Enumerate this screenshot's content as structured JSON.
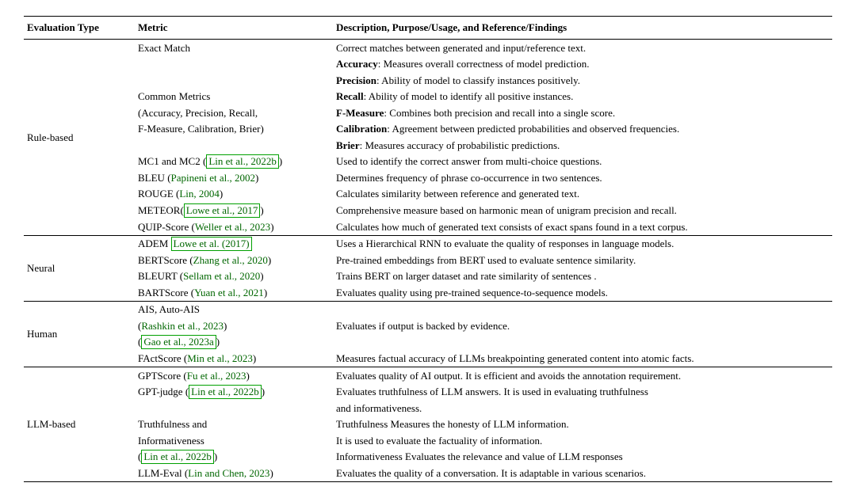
{
  "columns": {
    "c1": "Evaluation Type",
    "c2": "Metric",
    "c3": "Description, Purpose/Usage, and Reference/Findings"
  },
  "groups": [
    {
      "type": "Rule-based",
      "metric": [
        "Exact Match",
        "",
        "",
        "Common Metrics",
        "(Accuracy, Precision, Recall,",
        "F-Measure, Calibration, Brier)",
        "",
        "MC1 and MC2 (",
        "BLEU (",
        "ROUGE (",
        "METEOR(",
        "QUIP-Score ("
      ],
      "metric_cite": [
        "",
        "",
        "",
        "",
        "",
        "",
        "",
        "Lin et al., 2022b",
        "Papineni et al., 2002",
        "Lin, 2004",
        "Lowe et al., 2017",
        "Weller et al., 2023"
      ],
      "metric_citebox": [
        false,
        false,
        false,
        false,
        false,
        false,
        false,
        true,
        false,
        false,
        true,
        false
      ],
      "desc_plain": [
        "Correct matches between generated and input/reference text.",
        "",
        "",
        "",
        "",
        "",
        "",
        "Used to identify the correct answer from multi-choice questions.",
        "Determines frequency of phrase co-occurrence in two sentences.",
        "Calculates similarity between reference and generated text.",
        "Comprehensive measure based on harmonic mean of unigram precision and recall.",
        "Calculates how much of generated text consists of exact spans found in a text corpus."
      ],
      "desc_bold": [
        "",
        "Accuracy",
        "Precision",
        "Recall",
        "F-Measure",
        "Calibration",
        "Brier",
        "",
        "",
        "",
        "",
        ""
      ],
      "desc_rest": [
        "",
        ": Measures overall correctness of model prediction.",
        ": Ability of model to classify instances positively.",
        ": Ability of model to identify all positive instances.",
        ": Combines both precision and recall into a single score.",
        ": Agreement between predicted probabilities and observed frequencies.",
        ": Measures accuracy of probabilistic predictions.",
        "",
        "",
        "",
        "",
        ""
      ]
    },
    {
      "type": "Neural",
      "metric": [
        "ADEM ",
        "BERTScore (",
        "BLEURT (",
        "BARTScore ("
      ],
      "metric_cite": [
        "Lowe et al. (2017)",
        "Zhang et al., 2020",
        "Sellam et al., 2020",
        "Yuan et al., 2021"
      ],
      "metric_citebox": [
        true,
        false,
        false,
        false
      ],
      "desc_plain": [
        "Uses a Hierarchical RNN to evaluate the quality of responses in language models.",
        "Pre-trained embeddings from BERT used to evaluate sentence similarity.",
        "Trains BERT on larger dataset and rate similarity of sentences .",
        "Evaluates quality using pre-trained sequence-to-sequence models."
      ],
      "desc_bold": [
        "",
        "",
        "",
        ""
      ],
      "desc_rest": [
        "",
        "",
        "",
        ""
      ]
    },
    {
      "type": "Human",
      "metric": [
        "AIS, Auto-AIS",
        "(",
        "(",
        "FActScore ("
      ],
      "metric_cite": [
        "",
        "Rashkin et al., 2023",
        "Gao et al., 2023a",
        "Min et al., 2023"
      ],
      "metric_citebox": [
        false,
        false,
        true,
        false
      ],
      "desc_plain": [
        "",
        "Evaluates if output is backed by evidence.",
        "",
        "Measures factual accuracy of LLMs breakpointing generated content into atomic facts."
      ],
      "desc_bold": [
        "",
        "",
        "",
        ""
      ],
      "desc_rest": [
        "",
        "",
        "",
        ""
      ]
    },
    {
      "type": "LLM-based",
      "metric": [
        "GPTScore (",
        "GPT-judge (",
        "",
        "Truthfulness and",
        "Informativeness",
        "(",
        "LLM-Eval ("
      ],
      "metric_cite": [
        "Fu et al., 2023",
        "Lin et al., 2022b",
        "",
        "",
        "",
        "Lin et al., 2022b",
        "Lin and Chen, 2023"
      ],
      "metric_citebox": [
        false,
        true,
        false,
        false,
        false,
        true,
        false
      ],
      "desc_plain": [
        "Evaluates quality of AI output. It is efficient and avoids the annotation requirement.",
        "Evaluates truthfulness of LLM answers. It is used in evaluating truthfulness",
        "and informativeness.",
        "Truthfulness Measures the honesty of LLM information.",
        "It is used to evaluate the factuality of information.",
        "Informativeness Evaluates the relevance and value of LLM responses",
        "Evaluates the quality of a conversation. It is adaptable in various scenarios."
      ],
      "desc_bold": [
        "",
        "",
        "",
        "",
        "",
        "",
        ""
      ],
      "desc_rest": [
        "",
        "",
        "",
        "",
        "",
        "",
        ""
      ]
    }
  ]
}
